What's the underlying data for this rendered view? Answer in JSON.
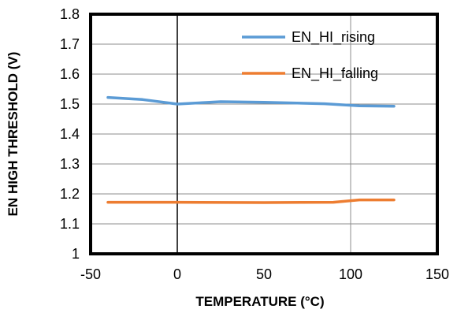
{
  "chart_data": {
    "type": "line",
    "title": "",
    "xlabel": "TEMPERATURE  (°C)",
    "ylabel": "EN HIGH THRESHOLD  (V)",
    "xlim": [
      -50,
      150
    ],
    "ylim": [
      1,
      1.8
    ],
    "x_ticks": [
      "-50",
      "0",
      "50",
      "100",
      "150"
    ],
    "y_ticks": [
      "1",
      "1.1",
      "1.2",
      "1.3",
      "1.4",
      "1.5",
      "1.6",
      "1.7",
      "1.8"
    ],
    "grid": true,
    "legend_position": "top-right",
    "series": [
      {
        "name": "EN_HI_rising",
        "color": "#5B9BD5",
        "x": [
          -40,
          -20,
          0,
          25,
          50,
          85,
          105,
          125
        ],
        "y": [
          1.522,
          1.515,
          1.5,
          1.508,
          1.506,
          1.501,
          1.494,
          1.493
        ]
      },
      {
        "name": "EN_HI_falling",
        "color": "#ED7D31",
        "x": [
          -40,
          0,
          50,
          90,
          105,
          125
        ],
        "y": [
          1.172,
          1.172,
          1.171,
          1.172,
          1.18,
          1.18
        ]
      }
    ]
  }
}
